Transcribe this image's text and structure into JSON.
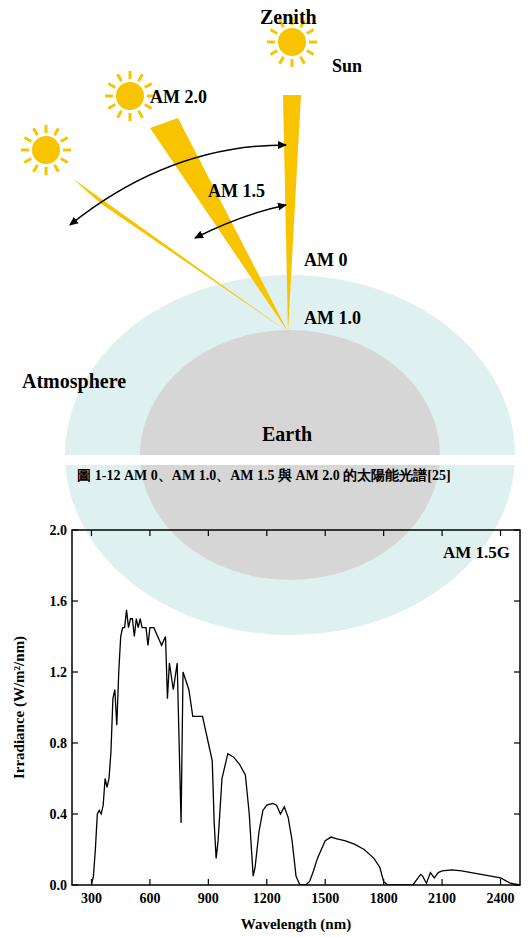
{
  "diagram": {
    "zenith": "Zenith",
    "sun": "Sun",
    "air_mass": [
      "AM 2.0",
      "AM 1.5",
      "AM 0",
      "AM 1.0"
    ],
    "atmosphere": "Atmosphere",
    "earth": "Earth"
  },
  "caption": "圖 1-12  AM 0、AM 1.0、AM 1.5 與 AM 2.0 的太陽能光譜[25]",
  "chart_data": {
    "type": "line",
    "annotation": "AM 1.5G",
    "x_label": "Wavelength (nm)",
    "y_label": "Irradiance (W/m²/nm)",
    "color": "#000000",
    "x": [
      300,
      310,
      320,
      330,
      340,
      350,
      360,
      370,
      380,
      390,
      400,
      410,
      420,
      430,
      440,
      450,
      460,
      470,
      480,
      490,
      500,
      510,
      520,
      530,
      540,
      550,
      560,
      570,
      580,
      590,
      600,
      620,
      640,
      660,
      680,
      690,
      700,
      720,
      740,
      760,
      770,
      800,
      820,
      850,
      870,
      900,
      920,
      930,
      940,
      950,
      970,
      1000,
      1030,
      1060,
      1090,
      1110,
      1130,
      1140,
      1160,
      1180,
      1200,
      1230,
      1250,
      1270,
      1290,
      1310,
      1330,
      1350,
      1370,
      1400,
      1420,
      1440,
      1460,
      1480,
      1500,
      1530,
      1560,
      1600,
      1650,
      1700,
      1750,
      1780,
      1800,
      1820,
      1950,
      1970,
      1990,
      2000,
      2020,
      2040,
      2060,
      2080,
      2100,
      2150,
      2200,
      2250,
      2300,
      2350,
      2400,
      2450,
      2500
    ],
    "values": [
      0.0,
      0.05,
      0.2,
      0.4,
      0.42,
      0.4,
      0.45,
      0.6,
      0.55,
      0.6,
      0.75,
      1.05,
      1.1,
      0.9,
      1.2,
      1.4,
      1.45,
      1.45,
      1.55,
      1.45,
      1.5,
      1.5,
      1.4,
      1.5,
      1.45,
      1.5,
      1.45,
      1.45,
      1.45,
      1.35,
      1.45,
      1.45,
      1.4,
      1.35,
      1.4,
      1.05,
      1.25,
      1.1,
      1.25,
      0.35,
      1.2,
      1.1,
      0.95,
      0.95,
      0.95,
      0.8,
      0.7,
      0.35,
      0.15,
      0.25,
      0.6,
      0.74,
      0.72,
      0.68,
      0.62,
      0.4,
      0.05,
      0.1,
      0.3,
      0.42,
      0.45,
      0.46,
      0.45,
      0.4,
      0.44,
      0.38,
      0.25,
      0.05,
      0.0,
      0.0,
      0.02,
      0.08,
      0.15,
      0.2,
      0.25,
      0.27,
      0.26,
      0.25,
      0.23,
      0.2,
      0.15,
      0.1,
      0.02,
      0.0,
      0.0,
      0.03,
      0.06,
      0.05,
      0.01,
      0.07,
      0.04,
      0.07,
      0.08,
      0.085,
      0.08,
      0.07,
      0.06,
      0.05,
      0.04,
      0.01,
      0.0
    ],
    "xlim": [
      200,
      2500
    ],
    "ylim": [
      0,
      2.0
    ],
    "xticks": [
      300,
      600,
      900,
      1200,
      1500,
      1800,
      2100,
      2400
    ],
    "yticks": [
      {
        "value": 0,
        "label": "0.0"
      },
      {
        "value": 0.4,
        "label": "0.4"
      },
      {
        "value": 0.8,
        "label": "0.8"
      },
      {
        "value": 1.2,
        "label": "1.2"
      },
      {
        "value": 1.6,
        "label": "1.6"
      },
      {
        "value": 2.0,
        "label": "2.0"
      }
    ]
  }
}
